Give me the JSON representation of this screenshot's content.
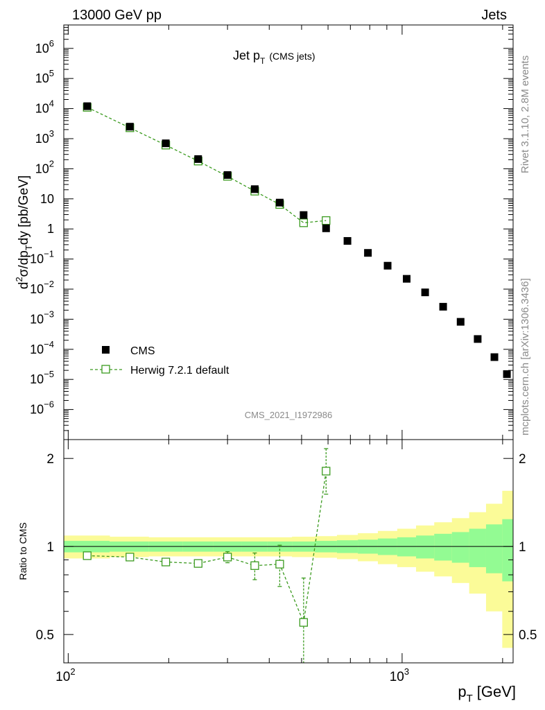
{
  "header": {
    "left": "13000 GeV pp",
    "right": "Jets"
  },
  "side_labels": {
    "rivet": "Rivet 3.1.10,  2.8M events",
    "mcplots": "mcplots.cern.ch [arXiv:1306.3436]"
  },
  "chart_data": {
    "type": "scatter",
    "title_main": "Jet p",
    "title_sub": "T",
    "title_suffix": "(CMS jets)",
    "watermark": "CMS_2021_I1972986",
    "xlabel_main": "p",
    "xlabel_sub": "T",
    "xlabel_unit": "[GeV]",
    "ylabel_parts": [
      "d",
      "2",
      "σ/dp",
      "T",
      "dy [pb/GeV]"
    ],
    "ratio_ylabel": "Ratio to CMS",
    "x_scale": "log",
    "xlim": [
      97,
      2150
    ],
    "ylim": [
      1e-07,
      6000000.0
    ],
    "ratio_ylim": [
      0.4,
      2.32
    ],
    "x_ticks": [
      {
        "value": 100,
        "base": "10",
        "exp": "2"
      },
      {
        "value": 1000,
        "base": "10",
        "exp": "3"
      }
    ],
    "y_ticks": [
      {
        "value": 1000000.0,
        "base": "10",
        "exp": "6"
      },
      {
        "value": 100000.0,
        "base": "10",
        "exp": "5"
      },
      {
        "value": 10000.0,
        "base": "10",
        "exp": "4"
      },
      {
        "value": 1000.0,
        "base": "10",
        "exp": "3"
      },
      {
        "value": 100.0,
        "base": "10",
        "exp": "2"
      },
      {
        "value": 10,
        "base": "10",
        "exp": ""
      },
      {
        "value": 1,
        "base": "1",
        "exp": ""
      },
      {
        "value": 0.1,
        "base": "10",
        "exp": "−1"
      },
      {
        "value": 0.01,
        "base": "10",
        "exp": "−2"
      },
      {
        "value": 0.001,
        "base": "10",
        "exp": "−3"
      },
      {
        "value": 0.0001,
        "base": "10",
        "exp": "−4"
      },
      {
        "value": 1e-05,
        "base": "10",
        "exp": "−5"
      },
      {
        "value": 1e-06,
        "base": "10",
        "exp": "−6"
      }
    ],
    "ratio_ticks": [
      {
        "value": 2,
        "label": "2"
      },
      {
        "value": 1,
        "label": "1"
      },
      {
        "value": 0.5,
        "label": "0.5"
      }
    ],
    "legend": {
      "position": "lower-left",
      "entries": [
        "CMS",
        "Herwig 7.2.1 default"
      ]
    },
    "colors": {
      "data": "#000000",
      "mc": "#3a9a1e",
      "band_inner": "#93fb93",
      "band_outer": "#fbfb98"
    },
    "cms": {
      "name": "CMS",
      "x": [
        114,
        153,
        196,
        245,
        300,
        362,
        430,
        507,
        592,
        686,
        790,
        905,
        1032,
        1172,
        1327,
        1497,
        1684,
        1890,
        2060
      ],
      "y": [
        12000,
        2500,
        700,
        210,
        62,
        21,
        7.5,
        2.9,
        1.05,
        0.4,
        0.16,
        0.06,
        0.022,
        0.0078,
        0.0026,
        0.00082,
        0.00022,
        5.5e-05,
        1.5e-05
      ]
    },
    "herwig": {
      "name": "Herwig 7.2.1 default",
      "x": [
        114,
        153,
        196,
        245,
        300,
        362,
        430,
        507,
        592
      ],
      "y": [
        11000,
        2300,
        610,
        180,
        56,
        18,
        6.5,
        1.6,
        1.9
      ]
    },
    "ratio": {
      "x": [
        114,
        153,
        196,
        245,
        300,
        362,
        430,
        507,
        592
      ],
      "y": [
        0.93,
        0.92,
        0.885,
        0.875,
        0.92,
        0.86,
        0.87,
        0.55,
        1.81
      ],
      "err_lo": [
        0.01,
        0.01,
        0.012,
        0.025,
        0.04,
        0.09,
        0.14,
        0.2,
        0.3
      ],
      "err_hi": [
        0.01,
        0.01,
        0.012,
        0.025,
        0.04,
        0.09,
        0.14,
        0.23,
        0.35
      ]
    },
    "bands": {
      "edges": [
        97,
        133,
        174,
        220,
        272,
        330,
        395,
        468,
        548,
        638,
        737,
        846,
        967,
        1101,
        1248,
        1410,
        1588,
        1784,
        1995,
        2150
      ],
      "inner": [
        0.045,
        0.04,
        0.04,
        0.04,
        0.04,
        0.04,
        0.04,
        0.04,
        0.045,
        0.05,
        0.055,
        0.065,
        0.075,
        0.09,
        0.105,
        0.12,
        0.15,
        0.19,
        0.24
      ],
      "outer": [
        0.09,
        0.08,
        0.075,
        0.075,
        0.075,
        0.075,
        0.075,
        0.08,
        0.085,
        0.095,
        0.11,
        0.13,
        0.15,
        0.18,
        0.21,
        0.25,
        0.31,
        0.4,
        0.55
      ]
    }
  }
}
